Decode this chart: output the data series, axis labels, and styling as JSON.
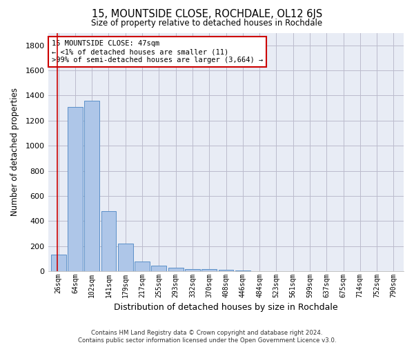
{
  "title": "15, MOUNTSIDE CLOSE, ROCHDALE, OL12 6JS",
  "subtitle": "Size of property relative to detached houses in Rochdale",
  "xlabel": "Distribution of detached houses by size in Rochdale",
  "ylabel": "Number of detached properties",
  "bar_labels": [
    "26sqm",
    "64sqm",
    "102sqm",
    "141sqm",
    "179sqm",
    "217sqm",
    "255sqm",
    "293sqm",
    "332sqm",
    "370sqm",
    "408sqm",
    "446sqm",
    "484sqm",
    "523sqm",
    "561sqm",
    "599sqm",
    "637sqm",
    "675sqm",
    "714sqm",
    "752sqm",
    "790sqm"
  ],
  "bar_values": [
    130,
    1310,
    1360,
    480,
    220,
    75,
    45,
    28,
    15,
    20,
    10,
    5,
    3,
    2,
    2,
    1,
    1,
    1,
    1,
    1,
    1
  ],
  "bar_color": "#aec6e8",
  "bar_edge_color": "#5a8fc8",
  "grid_color": "#bbbbcc",
  "bg_color": "#e8ecf5",
  "redline_x": -0.08,
  "annotation_text": "15 MOUNTSIDE CLOSE: 47sqm\n← <1% of detached houses are smaller (11)\n>99% of semi-detached houses are larger (3,664) →",
  "annotation_box_color": "#ffffff",
  "annotation_border_color": "#cc0000",
  "ylim": [
    0,
    1900
  ],
  "yticks": [
    0,
    200,
    400,
    600,
    800,
    1000,
    1200,
    1400,
    1600,
    1800
  ],
  "footer_line1": "Contains HM Land Registry data © Crown copyright and database right 2024.",
  "footer_line2": "Contains public sector information licensed under the Open Government Licence v3.0."
}
